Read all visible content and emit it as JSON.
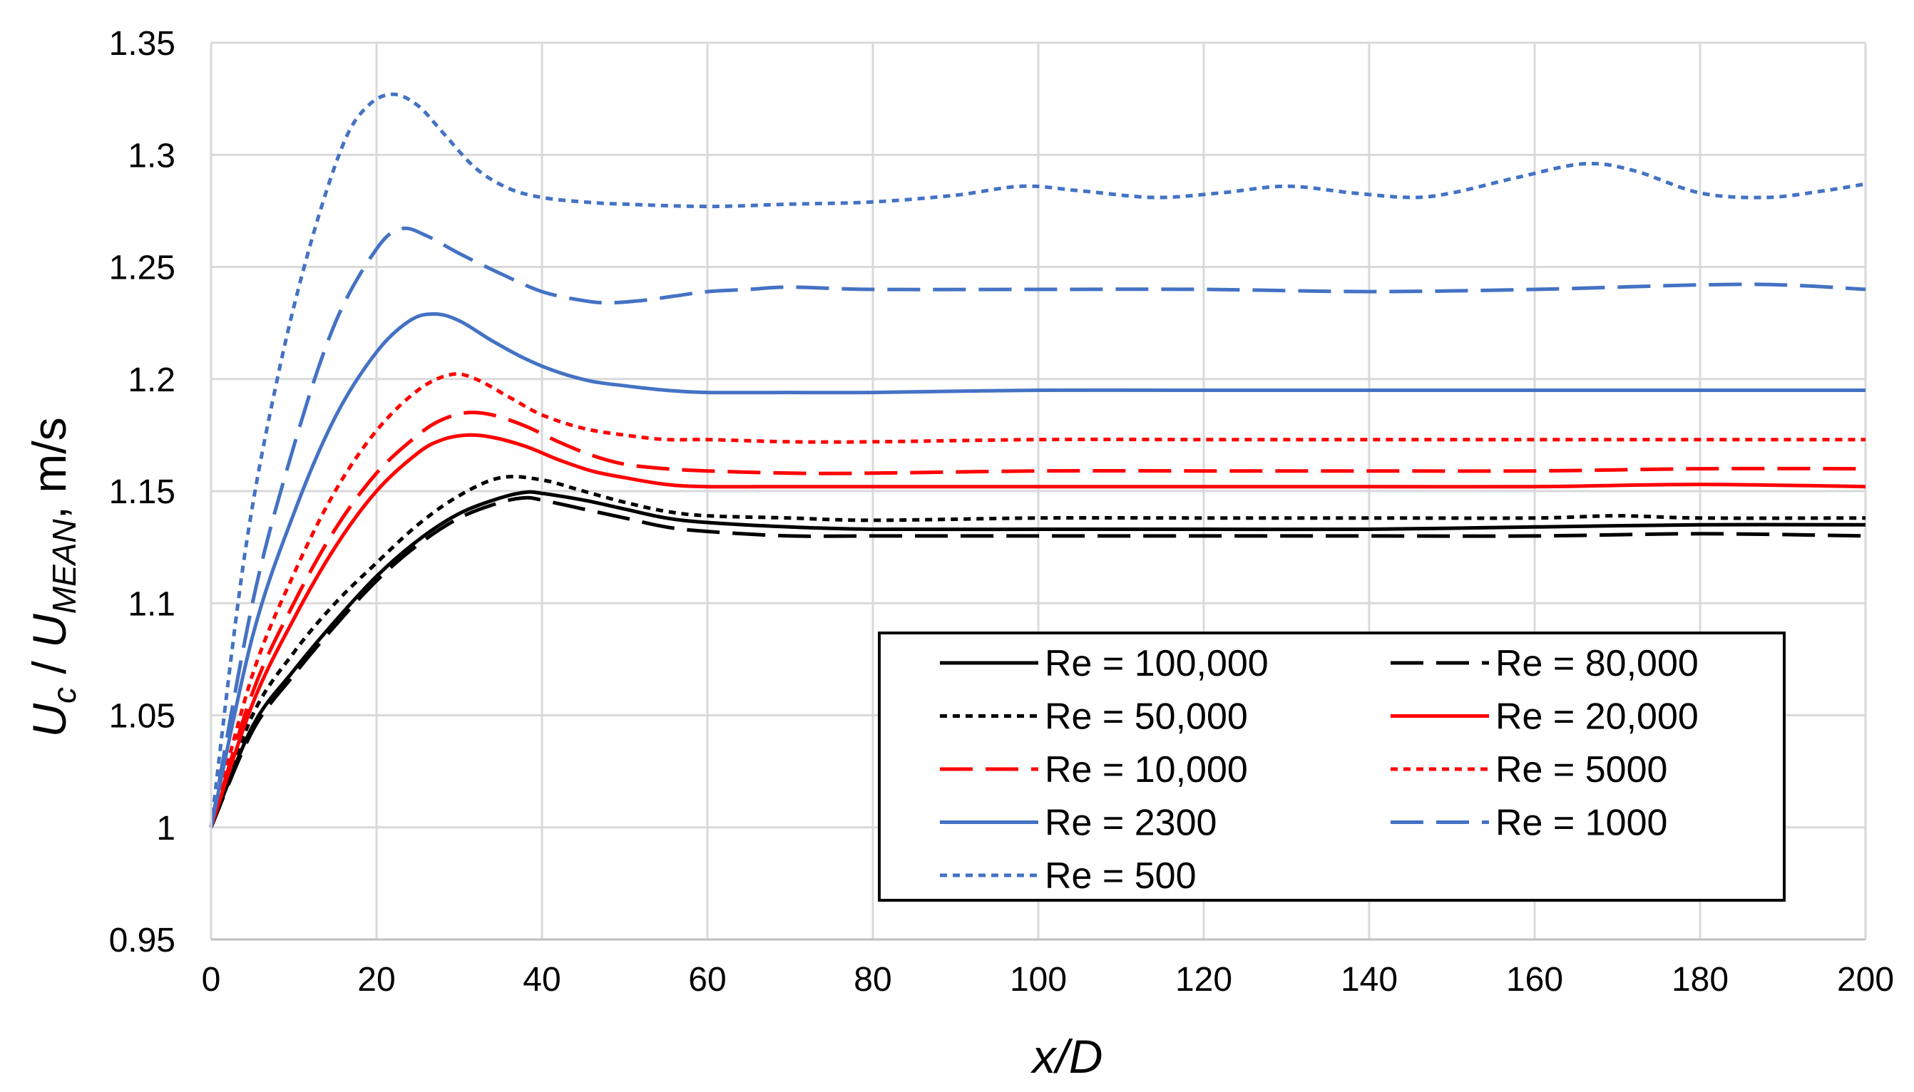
{
  "chart_data": {
    "type": "line",
    "title": "",
    "xlabel": "x/D",
    "ylabel": {
      "u1": "U",
      "sub1": "c",
      "slash": " / ",
      "u2": "U",
      "sub2": "MEAN",
      "units": ", m/s"
    },
    "xlim": [
      0,
      200
    ],
    "ylim": [
      0.95,
      1.35
    ],
    "xticks": [
      0,
      20,
      40,
      60,
      80,
      100,
      120,
      140,
      160,
      180,
      200
    ],
    "xtick_labels": [
      "0",
      "20",
      "40",
      "60",
      "80",
      "100",
      "120",
      "140",
      "160",
      "180",
      "200"
    ],
    "yticks": [
      0.95,
      1.0,
      1.05,
      1.1,
      1.15,
      1.2,
      1.25,
      1.3,
      1.35
    ],
    "ytick_labels": [
      "0.95",
      "1",
      "1.05",
      "1.1",
      "1.15",
      "1.2",
      "1.25",
      "1.3",
      "1.35"
    ],
    "grid": true,
    "legend_position": "bottom-right",
    "series": [
      {
        "name": "Re = 100,000",
        "color": "#000000",
        "dash": "solid",
        "x": [
          0,
          5,
          10,
          15,
          20,
          25,
          30,
          35,
          38,
          40,
          45,
          50,
          55,
          60,
          70,
          80,
          100,
          120,
          140,
          160,
          180,
          200
        ],
        "y": [
          1.0,
          1.045,
          1.07,
          1.092,
          1.112,
          1.128,
          1.14,
          1.147,
          1.1495,
          1.149,
          1.146,
          1.142,
          1.138,
          1.136,
          1.134,
          1.133,
          1.133,
          1.133,
          1.133,
          1.134,
          1.135,
          1.135
        ]
      },
      {
        "name": "Re = 80,000",
        "color": "#000000",
        "dash": "long",
        "x": [
          0,
          5,
          10,
          15,
          20,
          25,
          30,
          35,
          38,
          40,
          45,
          50,
          55,
          60,
          70,
          80,
          100,
          120,
          140,
          160,
          180,
          200
        ],
        "y": [
          1.0,
          1.043,
          1.068,
          1.09,
          1.11,
          1.126,
          1.138,
          1.145,
          1.147,
          1.146,
          1.142,
          1.138,
          1.134,
          1.132,
          1.13,
          1.13,
          1.13,
          1.13,
          1.13,
          1.13,
          1.131,
          1.13
        ]
      },
      {
        "name": "Re = 50,000",
        "color": "#000000",
        "dash": "short",
        "x": [
          0,
          5,
          10,
          15,
          20,
          25,
          30,
          35,
          40,
          45,
          50,
          55,
          60,
          70,
          80,
          100,
          120,
          140,
          160,
          170,
          180,
          200
        ],
        "y": [
          1.0,
          1.05,
          1.078,
          1.1,
          1.118,
          1.135,
          1.148,
          1.156,
          1.155,
          1.15,
          1.145,
          1.141,
          1.139,
          1.138,
          1.137,
          1.138,
          1.138,
          1.138,
          1.138,
          1.139,
          1.138,
          1.138
        ]
      },
      {
        "name": "Re = 20,000",
        "color": "#ff0000",
        "dash": "solid",
        "x": [
          0,
          5,
          10,
          15,
          20,
          25,
          28,
          31,
          34,
          38,
          42,
          46,
          50,
          55,
          60,
          70,
          80,
          100,
          120,
          140,
          160,
          180,
          200
        ],
        "y": [
          1.0,
          1.055,
          1.093,
          1.125,
          1.15,
          1.167,
          1.173,
          1.175,
          1.174,
          1.17,
          1.164,
          1.159,
          1.156,
          1.153,
          1.152,
          1.152,
          1.152,
          1.152,
          1.152,
          1.152,
          1.152,
          1.153,
          1.152
        ]
      },
      {
        "name": "Re = 10,000",
        "color": "#ff0000",
        "dash": "long",
        "x": [
          0,
          5,
          10,
          15,
          20,
          25,
          28,
          31,
          34,
          38,
          42,
          46,
          50,
          55,
          60,
          70,
          80,
          100,
          120,
          140,
          160,
          180,
          200
        ],
        "y": [
          1.0,
          1.06,
          1.1,
          1.133,
          1.158,
          1.175,
          1.182,
          1.185,
          1.184,
          1.179,
          1.172,
          1.166,
          1.162,
          1.16,
          1.159,
          1.158,
          1.158,
          1.159,
          1.159,
          1.159,
          1.159,
          1.16,
          1.16
        ]
      },
      {
        "name": "Re = 5000",
        "color": "#ff0000",
        "dash": "short",
        "x": [
          0,
          5,
          10,
          15,
          20,
          25,
          29,
          32,
          36,
          40,
          45,
          50,
          55,
          60,
          70,
          80,
          100,
          120,
          140,
          160,
          180,
          200
        ],
        "y": [
          1.0,
          1.068,
          1.113,
          1.15,
          1.177,
          1.195,
          1.202,
          1.2,
          1.192,
          1.184,
          1.178,
          1.175,
          1.173,
          1.173,
          1.172,
          1.172,
          1.173,
          1.173,
          1.173,
          1.173,
          1.173,
          1.173
        ]
      },
      {
        "name": "Re = 2300",
        "color": "#4472c4",
        "dash": "solid",
        "x": [
          0,
          5,
          10,
          15,
          20,
          24,
          27,
          30,
          34,
          38,
          42,
          46,
          50,
          55,
          60,
          70,
          80,
          100,
          120,
          140,
          160,
          180,
          200
        ],
        "y": [
          1.0,
          1.085,
          1.14,
          1.183,
          1.212,
          1.226,
          1.229,
          1.226,
          1.217,
          1.209,
          1.203,
          1.199,
          1.197,
          1.195,
          1.194,
          1.194,
          1.194,
          1.195,
          1.195,
          1.195,
          1.195,
          1.195,
          1.195
        ]
      },
      {
        "name": "Re = 1000",
        "color": "#4472c4",
        "dash": "long",
        "x": [
          0,
          5,
          10,
          15,
          20,
          23,
          26,
          30,
          35,
          40,
          45,
          48,
          52,
          56,
          60,
          65,
          70,
          80,
          100,
          120,
          140,
          160,
          180,
          190,
          200
        ],
        "y": [
          1.0,
          1.1,
          1.17,
          1.225,
          1.258,
          1.267,
          1.264,
          1.256,
          1.247,
          1.239,
          1.235,
          1.234,
          1.235,
          1.237,
          1.239,
          1.24,
          1.241,
          1.24,
          1.24,
          1.24,
          1.239,
          1.24,
          1.242,
          1.242,
          1.24
        ]
      },
      {
        "name": "Re = 500",
        "color": "#4472c4",
        "dash": "short",
        "x": [
          0,
          4,
          8,
          12,
          16,
          19,
          22,
          25,
          28,
          32,
          36,
          40,
          45,
          50,
          60,
          70,
          80,
          90,
          98,
          105,
          114,
          122,
          130,
          138,
          145,
          150,
          158,
          166,
          172,
          180,
          188,
          195,
          200
        ],
        "y": [
          1.0,
          1.12,
          1.2,
          1.26,
          1.305,
          1.322,
          1.327,
          1.322,
          1.31,
          1.294,
          1.285,
          1.281,
          1.279,
          1.278,
          1.277,
          1.278,
          1.279,
          1.282,
          1.286,
          1.284,
          1.281,
          1.283,
          1.286,
          1.283,
          1.281,
          1.283,
          1.29,
          1.296,
          1.293,
          1.283,
          1.281,
          1.284,
          1.287
        ]
      }
    ]
  }
}
